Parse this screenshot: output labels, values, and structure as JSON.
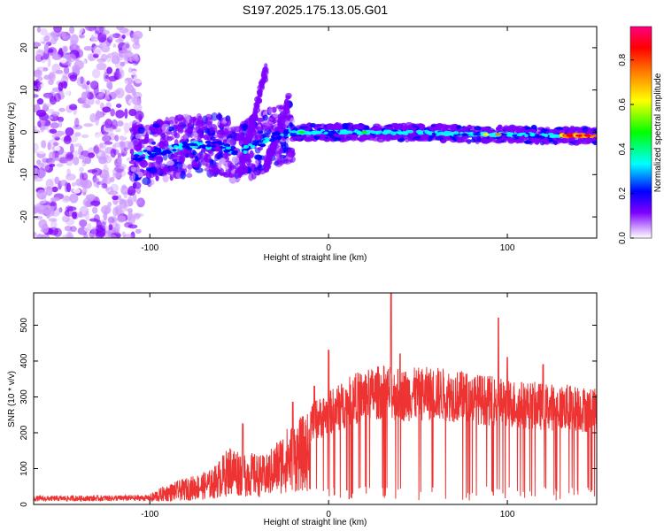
{
  "title": "S197.2025.175.13.05.G01",
  "chart_data": [
    {
      "type": "heatmap",
      "xlabel": "Height of straight line (km)",
      "ylabel": "Frequency (Hz)",
      "xlim": [
        -165,
        150
      ],
      "ylim": [
        -25,
        25
      ],
      "xticks": [
        -100,
        0,
        100
      ],
      "yticks": [
        -20,
        -10,
        0,
        10,
        20
      ],
      "colorbar": {
        "label": "Normalized spectral amplitude",
        "range": [
          0,
          0.95
        ],
        "ticks": [
          "0.0",
          "0.2",
          "0.4",
          "0.6",
          "0.8"
        ],
        "colors": [
          "#ffffff",
          "#cc99ff",
          "#7f00ff",
          "#0000ff",
          "#00ffff",
          "#00ff00",
          "#ffff00",
          "#ff8000",
          "#ff0000",
          "#ff0080"
        ]
      },
      "ridge": {
        "description_points": [
          [
            -110,
            -6
          ],
          [
            -90,
            -4
          ],
          [
            -75,
            -3
          ],
          [
            -60,
            -3
          ],
          [
            -50,
            -5
          ],
          [
            -40,
            -3
          ],
          [
            -30,
            -1
          ],
          [
            -20,
            0
          ],
          [
            -10,
            0
          ],
          [
            0,
            0
          ],
          [
            20,
            0
          ],
          [
            50,
            0
          ],
          [
            80,
            -0.5
          ],
          [
            100,
            -0.5
          ],
          [
            120,
            -0.7
          ],
          [
            145,
            -0.8
          ]
        ]
      }
    },
    {
      "type": "line",
      "xlabel": "Height of straight line (km)",
      "ylabel": "SNR (10 * v/v)",
      "xlim": [
        -165,
        150
      ],
      "ylim": [
        0,
        590
      ],
      "xticks": [
        -100,
        0,
        100
      ],
      "yticks": [
        0,
        100,
        200,
        300,
        400,
        500
      ],
      "color": "#ee3333",
      "envelope": [
        [
          -165,
          25
        ],
        [
          -100,
          28
        ],
        [
          -92,
          50
        ],
        [
          -80,
          70
        ],
        [
          -65,
          95
        ],
        [
          -55,
          160
        ],
        [
          -45,
          140
        ],
        [
          -35,
          130
        ],
        [
          -25,
          200
        ],
        [
          -15,
          235
        ],
        [
          -5,
          260
        ],
        [
          5,
          290
        ],
        [
          15,
          320
        ],
        [
          30,
          340
        ],
        [
          40,
          330
        ],
        [
          60,
          335
        ],
        [
          80,
          320
        ],
        [
          100,
          305
        ],
        [
          120,
          295
        ],
        [
          140,
          290
        ],
        [
          150,
          280
        ]
      ],
      "peaks": [
        [
          -48,
          225
        ],
        [
          -20,
          285
        ],
        [
          -8,
          330
        ],
        [
          0,
          430
        ],
        [
          35,
          590
        ],
        [
          40,
          420
        ],
        [
          95,
          520
        ],
        [
          100,
          410
        ],
        [
          120,
          390
        ]
      ]
    }
  ]
}
